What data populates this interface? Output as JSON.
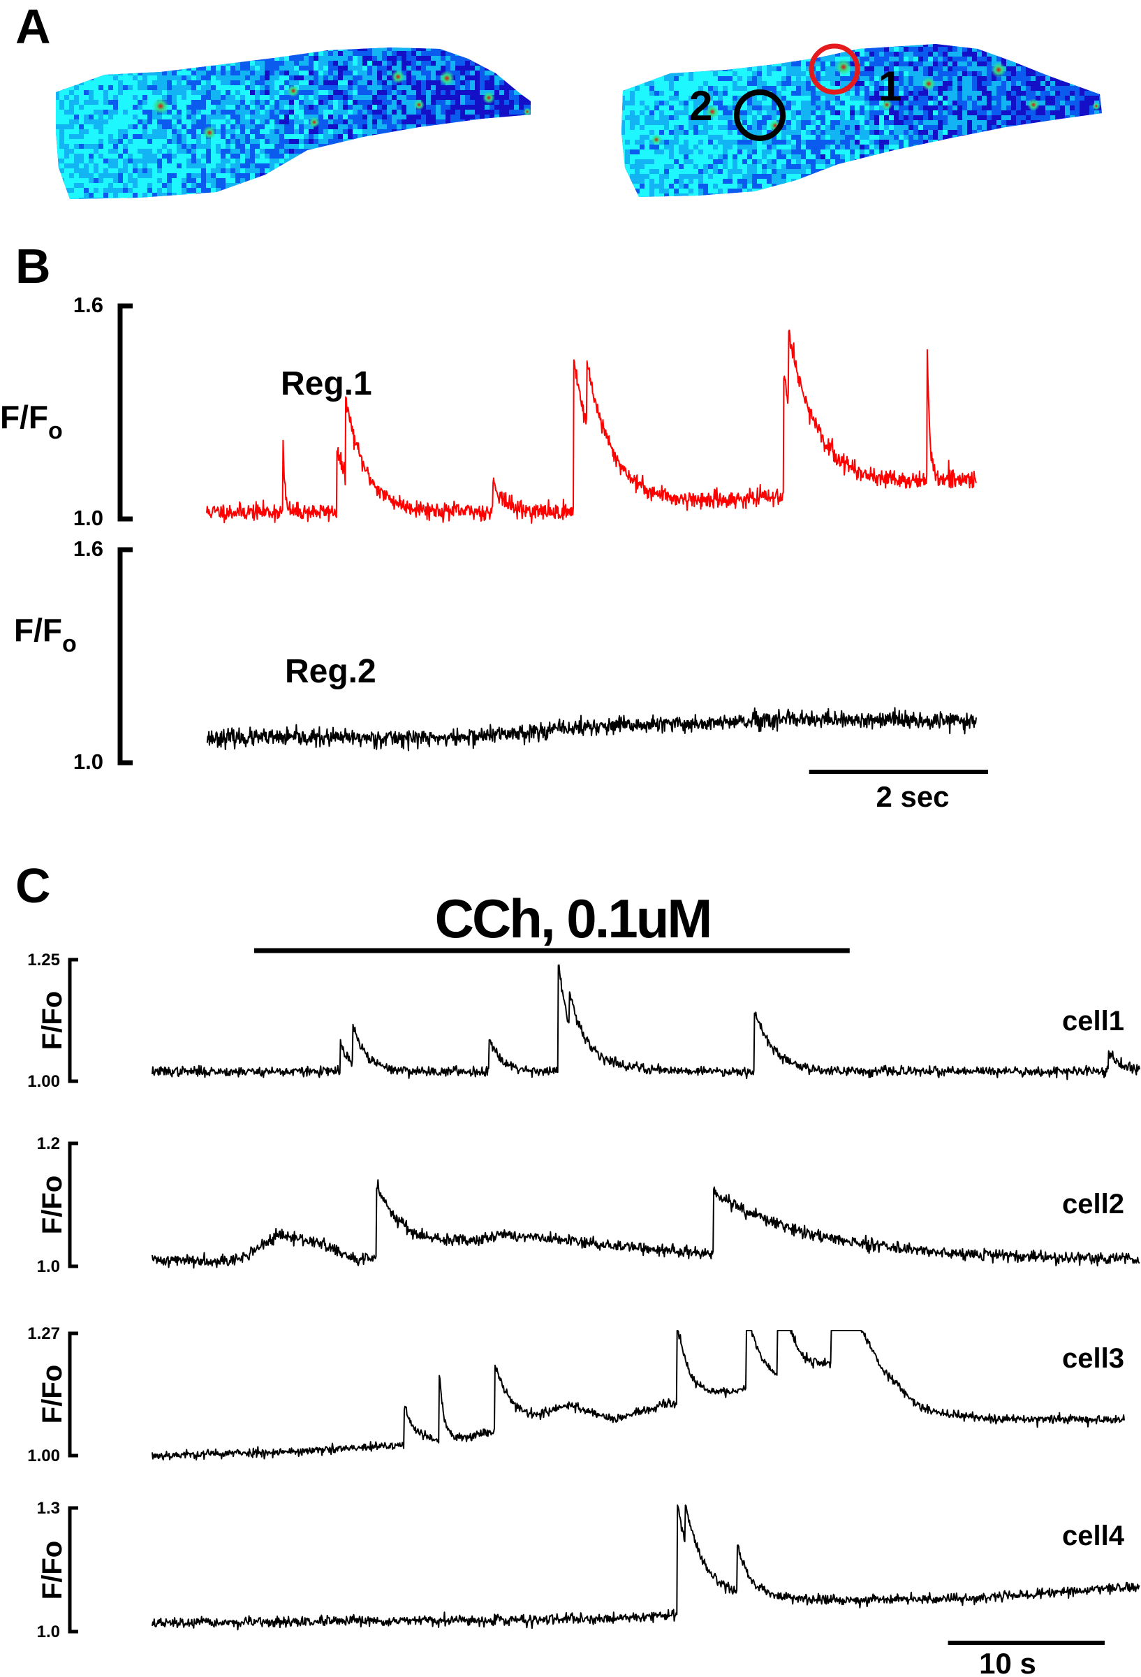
{
  "panels": {
    "a": {
      "label": "A",
      "roi_labels": [
        "1",
        "2"
      ],
      "roi_colors": {
        "1": "#e41a1c",
        "2": "#000000"
      },
      "colormap": [
        "#1410c8",
        "#0b5bef",
        "#12b4f3",
        "#1ff7ff",
        "#35e08a",
        "#e0e030",
        "#e01010"
      ]
    },
    "b": {
      "label": "B",
      "scale_bar_label": "2 sec",
      "scale_bar_seconds": 2
    },
    "c": {
      "label": "C",
      "drug_label": "CCh, 0.1uM",
      "scale_bar_label": "10 s",
      "scale_bar_seconds": 10
    }
  },
  "chart_data": [
    {
      "panel": "B",
      "type": "line",
      "name": "Reg.1",
      "ylabel": "F/F",
      "ylabel_subscript": "o",
      "ylim": [
        1.0,
        1.6
      ],
      "yticks": [
        "1.0",
        "1.6"
      ],
      "color": "#ff0000",
      "duration_s": 8.6,
      "baseline": 1.02,
      "noise": 0.012,
      "events": [
        {
          "t": 0.85,
          "peak": 1.25,
          "decay_s": 0.02
        },
        {
          "t": 1.45,
          "peak": 1.2,
          "decay_s": 0.18
        },
        {
          "t": 1.55,
          "peak": 1.24,
          "decay_s": 0.25
        },
        {
          "t": 3.2,
          "peak": 1.11,
          "decay_s": 0.12
        },
        {
          "t": 4.1,
          "peak": 1.46,
          "decay_s": 0.25
        },
        {
          "t": 4.25,
          "peak": 1.2,
          "decay_s": 0.4
        },
        {
          "t": 6.45,
          "peak": 1.36,
          "decay_s": 0.25
        },
        {
          "t": 6.5,
          "peak": 1.22,
          "decay_s": 0.5
        },
        {
          "t": 8.05,
          "peak": 1.42,
          "decay_s": 0.03
        }
      ],
      "drift": [
        [
          0,
          1.02
        ],
        [
          4.2,
          1.02
        ],
        [
          6.3,
          1.06
        ],
        [
          8.6,
          1.11
        ]
      ]
    },
    {
      "panel": "B",
      "type": "line",
      "name": "Reg.2",
      "ylabel": "F/F",
      "ylabel_subscript": "o",
      "ylim": [
        1.0,
        1.6
      ],
      "yticks": [
        "1.0",
        "1.6"
      ],
      "color": "#000000",
      "duration_s": 8.6,
      "baseline": 1.07,
      "noise": 0.012,
      "events": [],
      "drift": [
        [
          0,
          1.07
        ],
        [
          2.8,
          1.07
        ],
        [
          4.2,
          1.1
        ],
        [
          6.6,
          1.12
        ],
        [
          8.6,
          1.12
        ]
      ]
    },
    {
      "panel": "C",
      "type": "line",
      "name": "cell1",
      "ylabel": "F/Fo",
      "ylim": [
        1.0,
        1.25
      ],
      "yticks": [
        "1.00",
        "1.25"
      ],
      "color": "#000000",
      "duration_s": 63,
      "drug_on_s": 6.5,
      "drug_off_s": 44.5,
      "baseline": 1.02,
      "noise": 0.005,
      "events": [
        {
          "t": 12.0,
          "peak": 1.08,
          "decay_s": 0.6
        },
        {
          "t": 12.8,
          "peak": 1.1,
          "decay_s": 0.9
        },
        {
          "t": 21.5,
          "peak": 1.09,
          "decay_s": 0.8
        },
        {
          "t": 25.9,
          "peak": 1.25,
          "decay_s": 0.8
        },
        {
          "t": 26.6,
          "peak": 1.09,
          "decay_s": 2.0
        },
        {
          "t": 38.4,
          "peak": 1.15,
          "decay_s": 1.2
        },
        {
          "t": 61.0,
          "peak": 1.06,
          "decay_s": 0.8
        }
      ],
      "drift": [
        [
          0,
          1.02
        ],
        [
          63,
          1.02
        ]
      ]
    },
    {
      "panel": "C",
      "type": "line",
      "name": "cell2",
      "ylabel": "F/Fo",
      "ylim": [
        1.0,
        1.2
      ],
      "yticks": [
        "1.0",
        "1.2"
      ],
      "color": "#000000",
      "duration_s": 63,
      "baseline": 1.01,
      "noise": 0.005,
      "events": [
        {
          "t": 14.3,
          "peak": 1.13,
          "decay_s": 2.0
        },
        {
          "t": 35.8,
          "peak": 1.11,
          "decay_s": 6.0
        }
      ],
      "drift": [
        [
          0,
          1.01
        ],
        [
          5.5,
          1.01
        ],
        [
          8.0,
          1.05
        ],
        [
          10.5,
          1.04
        ],
        [
          13.0,
          1.01
        ],
        [
          17.0,
          1.02
        ],
        [
          22.5,
          1.05
        ],
        [
          27.0,
          1.04
        ],
        [
          31.0,
          1.03
        ],
        [
          35.5,
          1.02
        ],
        [
          63,
          1.01
        ]
      ]
    },
    {
      "panel": "C",
      "type": "line",
      "name": "cell3",
      "ylabel": "F/Fo",
      "ylim": [
        1.0,
        1.27
      ],
      "yticks": [
        "1.00",
        "1.27"
      ],
      "color": "#000000",
      "duration_s": 63,
      "baseline": 1.0,
      "noise": 0.005,
      "events": [
        {
          "t": 16.3,
          "peak": 1.09,
          "decay_s": 0.8
        },
        {
          "t": 18.6,
          "peak": 1.15,
          "decay_s": 0.3
        },
        {
          "t": 22.2,
          "peak": 1.15,
          "decay_s": 1.2
        },
        {
          "t": 34.0,
          "peak": 1.18,
          "decay_s": 0.8
        },
        {
          "t": 38.5,
          "peak": 1.19,
          "decay_s": 1.0
        },
        {
          "t": 40.5,
          "peak": 1.22,
          "decay_s": 1.2
        },
        {
          "t": 44.0,
          "peak": 1.26,
          "decay_s": 2.0
        }
      ],
      "drift": [
        [
          0,
          1.0
        ],
        [
          10.0,
          1.01
        ],
        [
          15.0,
          1.02
        ],
        [
          19.0,
          1.03
        ],
        [
          21.5,
          1.05
        ],
        [
          24.5,
          1.07
        ],
        [
          27.0,
          1.11
        ],
        [
          30.0,
          1.08
        ],
        [
          33.0,
          1.11
        ],
        [
          37.5,
          1.14
        ],
        [
          42.0,
          1.16
        ],
        [
          45.0,
          1.21
        ],
        [
          47.5,
          1.14
        ],
        [
          50.0,
          1.09
        ],
        [
          54.5,
          1.08
        ]
      ]
    },
    {
      "panel": "C",
      "type": "line",
      "name": "cell4",
      "ylabel": "F/Fo",
      "ylim": [
        1.0,
        1.3
      ],
      "yticks": [
        "1.0",
        "1.3"
      ],
      "color": "#000000",
      "duration_s": 63,
      "baseline": 1.02,
      "noise": 0.006,
      "events": [
        {
          "t": 33.5,
          "peak": 1.3,
          "decay_s": 1.0
        },
        {
          "t": 34.0,
          "peak": 1.12,
          "decay_s": 3.0
        },
        {
          "t": 37.3,
          "peak": 1.14,
          "decay_s": 0.8
        }
      ],
      "drift": [
        [
          0,
          1.02
        ],
        [
          28.0,
          1.03
        ],
        [
          33.0,
          1.04
        ],
        [
          40.0,
          1.07
        ],
        [
          52.0,
          1.08
        ],
        [
          63,
          1.11
        ]
      ]
    }
  ]
}
